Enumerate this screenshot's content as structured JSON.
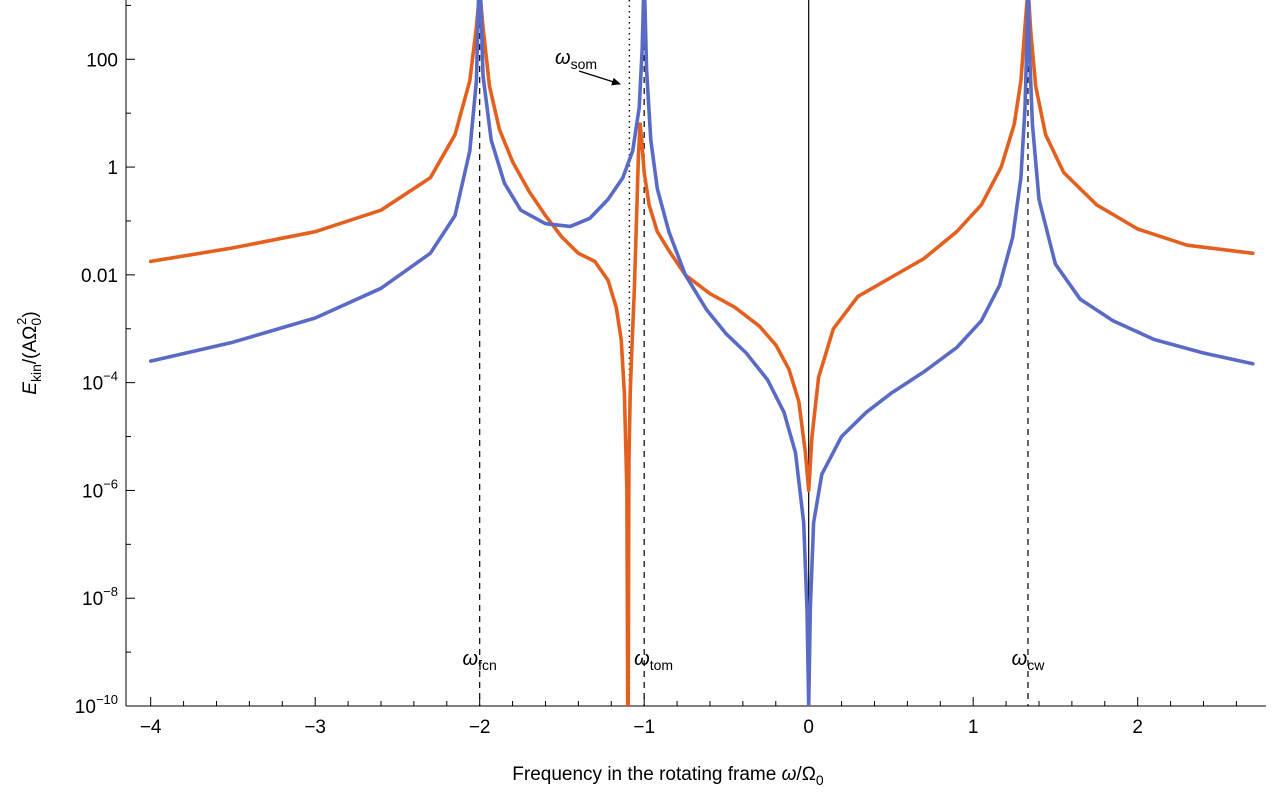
{
  "chart_data": {
    "type": "line",
    "xlabel": {
      "text": "Frequency in the rotating frame ",
      "var": "ω",
      "slash": "/",
      "denom": "Ω",
      "denom_sub": "0"
    },
    "ylabel": {
      "var": "E",
      "var_sub": "kin",
      "rest": "/(AΩ",
      "rest_sub": "0",
      "rest_sup": "2",
      "close": ")"
    },
    "xlim": [
      -4.15,
      2.78
    ],
    "ylim_log10": [
      -10,
      3.1
    ],
    "y_scale": "log",
    "x_ticks": [
      {
        "value": -4,
        "label": "−4"
      },
      {
        "value": -3,
        "label": "−3"
      },
      {
        "value": -2,
        "label": "−2"
      },
      {
        "value": -1,
        "label": "−1"
      },
      {
        "value": 0,
        "label": "0"
      },
      {
        "value": 1,
        "label": "1"
      },
      {
        "value": 2,
        "label": "2"
      }
    ],
    "y_ticks": [
      {
        "log10": 2,
        "base": "100",
        "exp": ""
      },
      {
        "log10": 0,
        "base": "1",
        "exp": ""
      },
      {
        "log10": -2,
        "base": "0.01",
        "exp": ""
      },
      {
        "log10": -4,
        "base": "10",
        "exp": "−4"
      },
      {
        "log10": -6,
        "base": "10",
        "exp": "−6"
      },
      {
        "log10": -8,
        "base": "10",
        "exp": "−8"
      },
      {
        "log10": -10,
        "base": "10",
        "exp": "−10"
      }
    ],
    "markers": [
      {
        "x": -2.0,
        "style": "dashed",
        "symbol": "ω",
        "sub": "fcn"
      },
      {
        "x": -1.0,
        "style": "dashed",
        "symbol": "ω",
        "sub": "tom"
      },
      {
        "x": 1.333,
        "style": "dashed",
        "symbol": "ω",
        "sub": "cw"
      },
      {
        "x": -1.09,
        "style": "dotted",
        "symbol": "ω",
        "sub": "som"
      },
      {
        "x": 0.0,
        "style": "solid",
        "symbol": "",
        "sub": ""
      }
    ],
    "series": [
      {
        "color": "#e4601f",
        "points": [
          [
            -4.0,
            -1.75
          ],
          [
            -3.5,
            -1.5
          ],
          [
            -3.0,
            -1.2
          ],
          [
            -2.6,
            -0.8
          ],
          [
            -2.3,
            -0.2
          ],
          [
            -2.15,
            0.6
          ],
          [
            -2.06,
            1.6
          ],
          [
            -2.02,
            2.6
          ],
          [
            -2.005,
            3.1
          ],
          [
            -1.995,
            3.1
          ],
          [
            -1.98,
            2.6
          ],
          [
            -1.94,
            1.5
          ],
          [
            -1.88,
            0.7
          ],
          [
            -1.8,
            0.1
          ],
          [
            -1.7,
            -0.45
          ],
          [
            -1.6,
            -0.9
          ],
          [
            -1.5,
            -1.3
          ],
          [
            -1.4,
            -1.6
          ],
          [
            -1.3,
            -1.75
          ],
          [
            -1.22,
            -2.1
          ],
          [
            -1.17,
            -2.6
          ],
          [
            -1.14,
            -3.2
          ],
          [
            -1.12,
            -4.2
          ],
          [
            -1.105,
            -6.0
          ],
          [
            -1.1,
            -10.0
          ],
          [
            -1.097,
            -10.0
          ],
          [
            -1.093,
            -5.5
          ],
          [
            -1.085,
            -4.2
          ],
          [
            -1.075,
            -3.4
          ],
          [
            -1.06,
            -2.3
          ],
          [
            -1.045,
            -0.8
          ],
          [
            -1.035,
            0.2
          ],
          [
            -1.025,
            0.8
          ],
          [
            -1.015,
            0.5
          ],
          [
            -1.0,
            -0.1
          ],
          [
            -0.97,
            -0.7
          ],
          [
            -0.92,
            -1.2
          ],
          [
            -0.85,
            -1.55
          ],
          [
            -0.75,
            -2.0
          ],
          [
            -0.6,
            -2.35
          ],
          [
            -0.45,
            -2.6
          ],
          [
            -0.3,
            -2.95
          ],
          [
            -0.2,
            -3.3
          ],
          [
            -0.12,
            -3.75
          ],
          [
            -0.06,
            -4.35
          ],
          [
            -0.02,
            -5.3
          ],
          [
            0.0,
            -6.0
          ],
          [
            0.02,
            -5.0
          ],
          [
            0.06,
            -3.9
          ],
          [
            0.15,
            -3.0
          ],
          [
            0.3,
            -2.4
          ],
          [
            0.5,
            -2.05
          ],
          [
            0.7,
            -1.7
          ],
          [
            0.9,
            -1.2
          ],
          [
            1.05,
            -0.7
          ],
          [
            1.17,
            0.0
          ],
          [
            1.25,
            0.8
          ],
          [
            1.29,
            1.6
          ],
          [
            1.315,
            2.6
          ],
          [
            1.328,
            3.1
          ],
          [
            1.338,
            3.1
          ],
          [
            1.35,
            2.5
          ],
          [
            1.38,
            1.5
          ],
          [
            1.44,
            0.6
          ],
          [
            1.55,
            -0.1
          ],
          [
            1.75,
            -0.7
          ],
          [
            2.0,
            -1.15
          ],
          [
            2.3,
            -1.45
          ],
          [
            2.7,
            -1.6
          ]
        ]
      },
      {
        "color": "#5a6bc6",
        "points": [
          [
            -4.0,
            -3.6
          ],
          [
            -3.5,
            -3.25
          ],
          [
            -3.0,
            -2.8
          ],
          [
            -2.6,
            -2.25
          ],
          [
            -2.3,
            -1.6
          ],
          [
            -2.15,
            -0.9
          ],
          [
            -2.06,
            0.3
          ],
          [
            -2.02,
            1.6
          ],
          [
            -2.007,
            3.1
          ],
          [
            -1.993,
            3.1
          ],
          [
            -1.98,
            1.7
          ],
          [
            -1.93,
            0.5
          ],
          [
            -1.85,
            -0.3
          ],
          [
            -1.75,
            -0.8
          ],
          [
            -1.6,
            -1.05
          ],
          [
            -1.45,
            -1.1
          ],
          [
            -1.33,
            -0.95
          ],
          [
            -1.22,
            -0.6
          ],
          [
            -1.13,
            -0.2
          ],
          [
            -1.07,
            0.3
          ],
          [
            -1.03,
            1.1
          ],
          [
            -1.012,
            2.2
          ],
          [
            -1.004,
            3.1
          ],
          [
            -0.996,
            3.1
          ],
          [
            -0.985,
            1.8
          ],
          [
            -0.96,
            0.5
          ],
          [
            -0.92,
            -0.4
          ],
          [
            -0.85,
            -1.2
          ],
          [
            -0.75,
            -2.0
          ],
          [
            -0.62,
            -2.65
          ],
          [
            -0.5,
            -3.1
          ],
          [
            -0.38,
            -3.45
          ],
          [
            -0.25,
            -3.95
          ],
          [
            -0.15,
            -4.55
          ],
          [
            -0.08,
            -5.3
          ],
          [
            -0.03,
            -6.6
          ],
          [
            -0.01,
            -8.2
          ],
          [
            0.0,
            -10.0
          ],
          [
            0.01,
            -8.2
          ],
          [
            0.03,
            -6.6
          ],
          [
            0.08,
            -5.7
          ],
          [
            0.2,
            -5.0
          ],
          [
            0.35,
            -4.55
          ],
          [
            0.5,
            -4.2
          ],
          [
            0.7,
            -3.8
          ],
          [
            0.9,
            -3.35
          ],
          [
            1.05,
            -2.85
          ],
          [
            1.16,
            -2.2
          ],
          [
            1.24,
            -1.3
          ],
          [
            1.29,
            -0.2
          ],
          [
            1.315,
            1.1
          ],
          [
            1.327,
            2.4
          ],
          [
            1.332,
            3.1
          ],
          [
            1.336,
            3.1
          ],
          [
            1.342,
            2.2
          ],
          [
            1.36,
            0.8
          ],
          [
            1.4,
            -0.6
          ],
          [
            1.5,
            -1.8
          ],
          [
            1.65,
            -2.45
          ],
          [
            1.85,
            -2.85
          ],
          [
            2.1,
            -3.2
          ],
          [
            2.4,
            -3.45
          ],
          [
            2.7,
            -3.65
          ]
        ]
      }
    ]
  }
}
